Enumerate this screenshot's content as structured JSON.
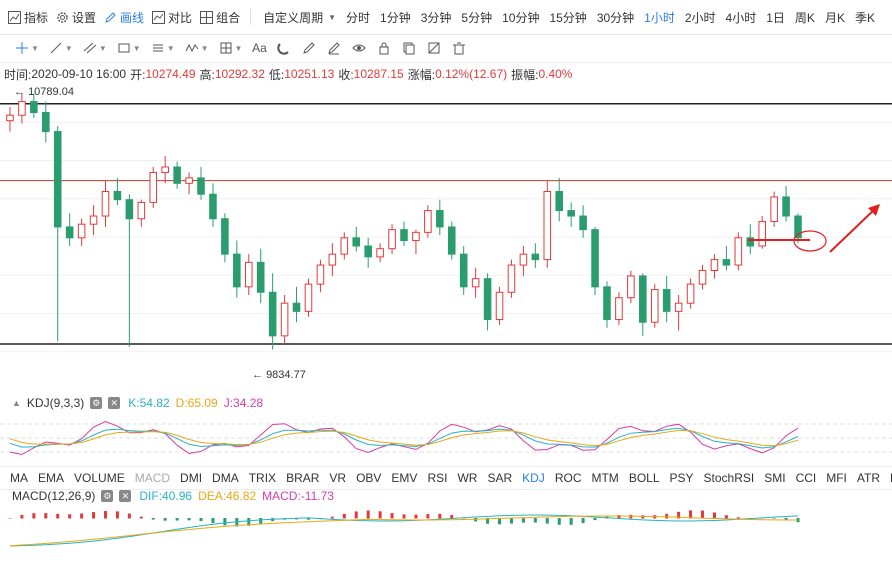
{
  "toolbar": {
    "indicator": "指标",
    "settings": "设置",
    "draw": "画线",
    "compare": "对比",
    "combine": "组合",
    "custom_period": "自定义周期",
    "periods": [
      "分时",
      "1分钟",
      "3分钟",
      "5分钟",
      "10分钟",
      "15分钟",
      "30分钟",
      "1小时",
      "2小时",
      "4小时",
      "1日",
      "周K",
      "月K",
      "季K"
    ],
    "active_period": "1小时"
  },
  "ohlc": {
    "time_label": "时间:",
    "time": "2020-09-10 16:00",
    "open_label": "开:",
    "open": "10274.49",
    "high_label": "高:",
    "high": "10292.32",
    "low_label": "低:",
    "low": "10251.13",
    "close_label": "收:",
    "close": "10287.15",
    "change_label": "涨幅:",
    "change": "0.12%(12.67)",
    "amp_label": "振幅:",
    "amp": "0.40%"
  },
  "price_labels": {
    "high": "10789.04",
    "low": "9834.77"
  },
  "kdj": {
    "name": "KDJ(9,3,3)",
    "k": "K:54.82",
    "d": "D:65.09",
    "j": "J:34.28"
  },
  "macd": {
    "name": "MACD(12,26,9)",
    "dif": "DIF:40.96",
    "dea": "DEA:46.82",
    "macd": "MACD:-11.73"
  },
  "indicator_tabs": [
    "MA",
    "EMA",
    "VOLUME",
    "MACD",
    "DMI",
    "DMA",
    "TRIX",
    "BRAR",
    "VR",
    "OBV",
    "EMV",
    "RSI",
    "WR",
    "SAR",
    "KDJ",
    "ROC",
    "MTM",
    "BOLL",
    "PSY",
    "StochRSI",
    "SMI",
    "CCI",
    "MFI",
    "ATR",
    "BBW"
  ],
  "colors": {
    "up": "#e03b3b",
    "down": "#2a9d6f",
    "accent": "#2b7fe0",
    "k": "#27b3c2",
    "d": "#e6a817",
    "j": "#d63aa8"
  },
  "chart_data": {
    "type": "candlestick",
    "symbol_interval": "1小时",
    "ylim": [
      9760,
      10810
    ],
    "resistance": 10470,
    "support_upper": 10789,
    "support_lower": 9870,
    "candles": [
      [
        10690,
        10740,
        10650,
        10710
      ],
      [
        10710,
        10790,
        10680,
        10760
      ],
      [
        10760,
        10789,
        10700,
        10720
      ],
      [
        10720,
        10760,
        10610,
        10650
      ],
      [
        10650,
        10670,
        9880,
        10300
      ],
      [
        10300,
        10350,
        10230,
        10260
      ],
      [
        10260,
        10330,
        10230,
        10310
      ],
      [
        10310,
        10380,
        10270,
        10340
      ],
      [
        10340,
        10470,
        10300,
        10430
      ],
      [
        10430,
        10480,
        10380,
        10400
      ],
      [
        10400,
        10420,
        9860,
        10330
      ],
      [
        10330,
        10400,
        10300,
        10390
      ],
      [
        10390,
        10520,
        10370,
        10500
      ],
      [
        10500,
        10560,
        10460,
        10520
      ],
      [
        10520,
        10540,
        10440,
        10460
      ],
      [
        10460,
        10500,
        10420,
        10480
      ],
      [
        10480,
        10520,
        10400,
        10420
      ],
      [
        10420,
        10460,
        10300,
        10330
      ],
      [
        10330,
        10350,
        10170,
        10200
      ],
      [
        10200,
        10250,
        10040,
        10080
      ],
      [
        10080,
        10200,
        10050,
        10170
      ],
      [
        10170,
        10220,
        10020,
        10060
      ],
      [
        10060,
        10130,
        9850,
        9900
      ],
      [
        9900,
        10050,
        9870,
        10020
      ],
      [
        10020,
        10080,
        9950,
        9990
      ],
      [
        9990,
        10110,
        9970,
        10090
      ],
      [
        10090,
        10180,
        10060,
        10160
      ],
      [
        10160,
        10240,
        10120,
        10200
      ],
      [
        10200,
        10280,
        10180,
        10260
      ],
      [
        10260,
        10300,
        10210,
        10230
      ],
      [
        10230,
        10260,
        10150,
        10190
      ],
      [
        10190,
        10240,
        10170,
        10220
      ],
      [
        10220,
        10310,
        10200,
        10290
      ],
      [
        10290,
        10320,
        10230,
        10250
      ],
      [
        10250,
        10290,
        10200,
        10280
      ],
      [
        10280,
        10380,
        10260,
        10360
      ],
      [
        10360,
        10400,
        10270,
        10300
      ],
      [
        10300,
        10320,
        10180,
        10200
      ],
      [
        10200,
        10230,
        10050,
        10080
      ],
      [
        10080,
        10150,
        10040,
        10110
      ],
      [
        10110,
        10130,
        9920,
        9960
      ],
      [
        9960,
        10080,
        9940,
        10060
      ],
      [
        10060,
        10180,
        10040,
        10160
      ],
      [
        10160,
        10230,
        10120,
        10200
      ],
      [
        10200,
        10240,
        10150,
        10180
      ],
      [
        10180,
        10470,
        10150,
        10430
      ],
      [
        10430,
        10480,
        10320,
        10360
      ],
      [
        10360,
        10390,
        10300,
        10340
      ],
      [
        10340,
        10380,
        10260,
        10290
      ],
      [
        10290,
        10300,
        10050,
        10080
      ],
      [
        10080,
        10100,
        9930,
        9960
      ],
      [
        9960,
        10060,
        9940,
        10040
      ],
      [
        10040,
        10140,
        10020,
        10120
      ],
      [
        10120,
        10130,
        9900,
        9950
      ],
      [
        9950,
        10090,
        9930,
        10070
      ],
      [
        10070,
        10120,
        9950,
        9990
      ],
      [
        9990,
        10050,
        9920,
        10020
      ],
      [
        10020,
        10110,
        10000,
        10090
      ],
      [
        10090,
        10160,
        10070,
        10140
      ],
      [
        10140,
        10200,
        10110,
        10180
      ],
      [
        10180,
        10230,
        10140,
        10160
      ],
      [
        10160,
        10280,
        10140,
        10260
      ],
      [
        10260,
        10310,
        10200,
        10230
      ],
      [
        10230,
        10340,
        10220,
        10320
      ],
      [
        10320,
        10430,
        10300,
        10410
      ],
      [
        10410,
        10450,
        10320,
        10340
      ],
      [
        10340,
        10350,
        10240,
        10260
      ]
    ]
  }
}
